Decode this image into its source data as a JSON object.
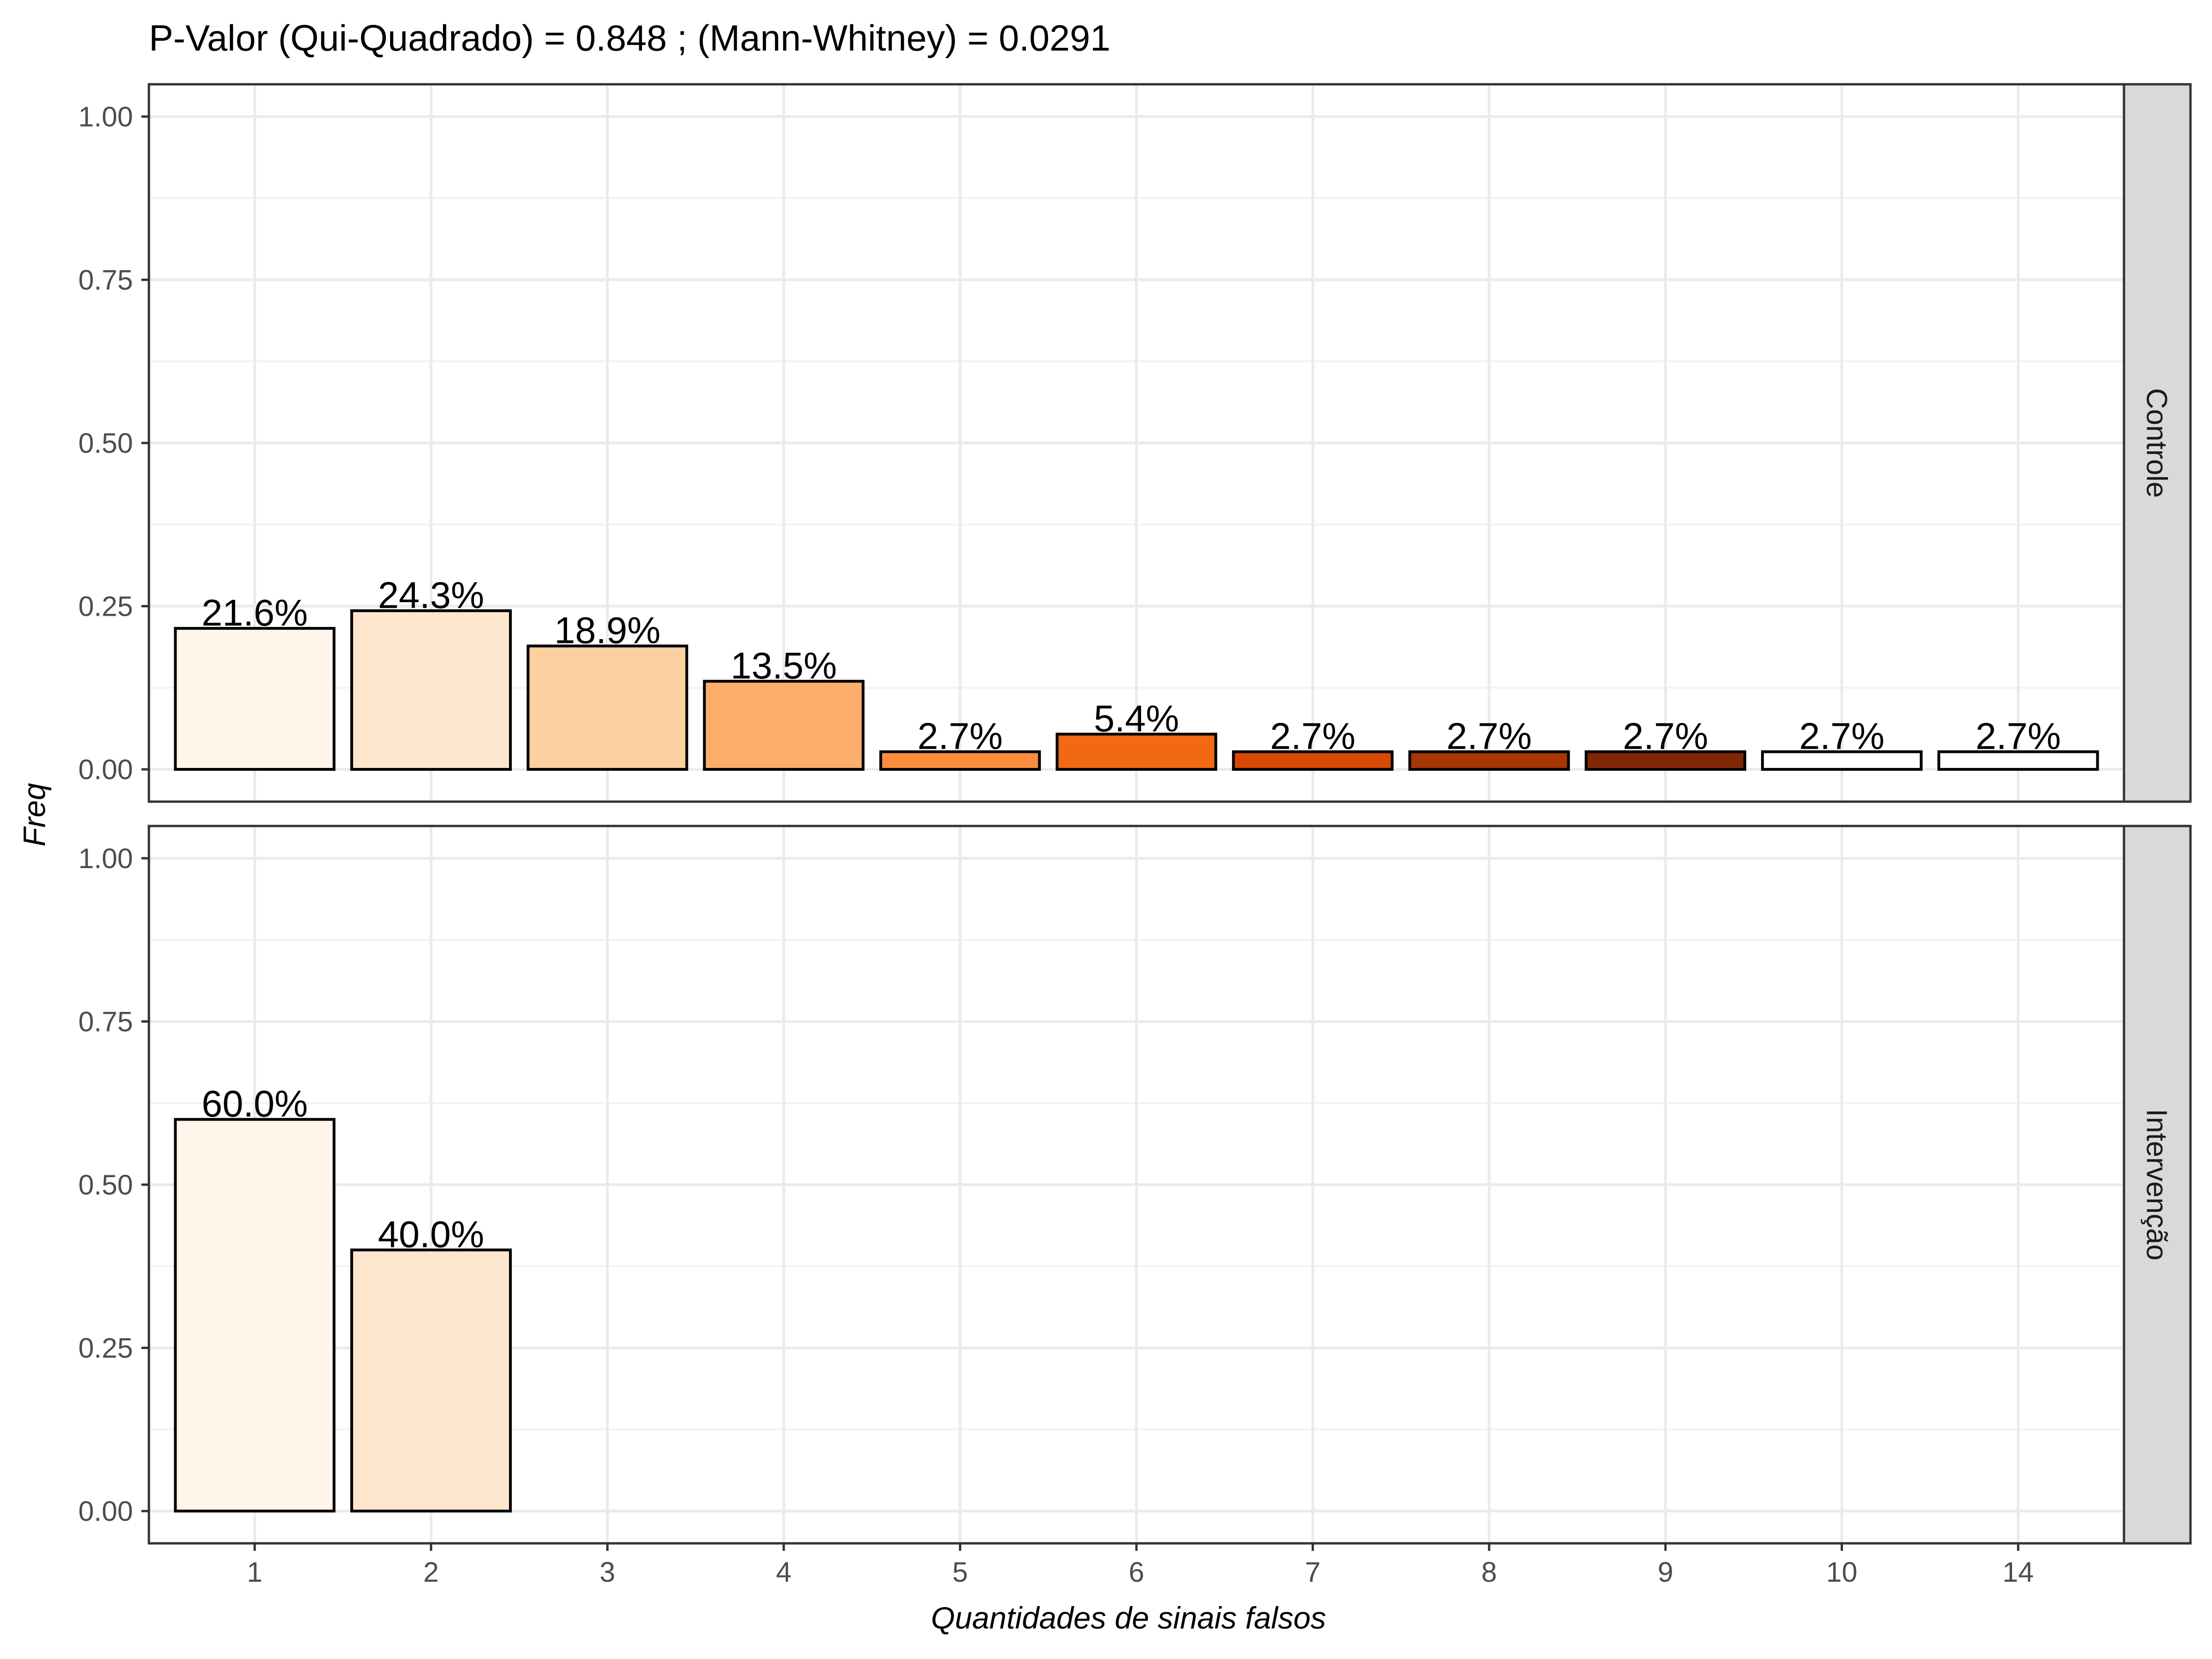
{
  "chart_data": {
    "type": "bar",
    "title": "P-Valor (Qui-Quadrado) = 0.848 ; (Mann-Whitney) = 0.0291",
    "xlabel": "Quantidades de sinais falsos",
    "ylabel": "Freq",
    "categories": [
      "1",
      "2",
      "3",
      "4",
      "5",
      "6",
      "7",
      "8",
      "9",
      "10",
      "14"
    ],
    "fill_colors": [
      "#FFF5EB",
      "#FEE6CE",
      "#FDD0A2",
      "#FDAE6B",
      "#FD8D3C",
      "#F16913",
      "#D94801",
      "#A63603",
      "#7F2704",
      "#FFFFFF",
      "#FFFFFF"
    ],
    "ylim": [
      0,
      1
    ],
    "yticks": [
      "0.00",
      "0.25",
      "0.50",
      "0.75",
      "1.00"
    ],
    "grid": true,
    "legend": "none",
    "panels": [
      {
        "name": "Controle",
        "values": [
          0.216,
          0.243,
          0.189,
          0.135,
          0.027,
          0.054,
          0.027,
          0.027,
          0.027,
          0.027,
          0.027
        ],
        "labels": [
          "21.6%",
          "24.3%",
          "18.9%",
          "13.5%",
          "2.7%",
          "5.4%",
          "2.7%",
          "2.7%",
          "2.7%",
          "2.7%",
          "2.7%"
        ]
      },
      {
        "name": "Intervenção",
        "values": [
          0.6,
          0.4
        ],
        "labels": [
          "60.0%",
          "40.0%"
        ]
      }
    ]
  }
}
